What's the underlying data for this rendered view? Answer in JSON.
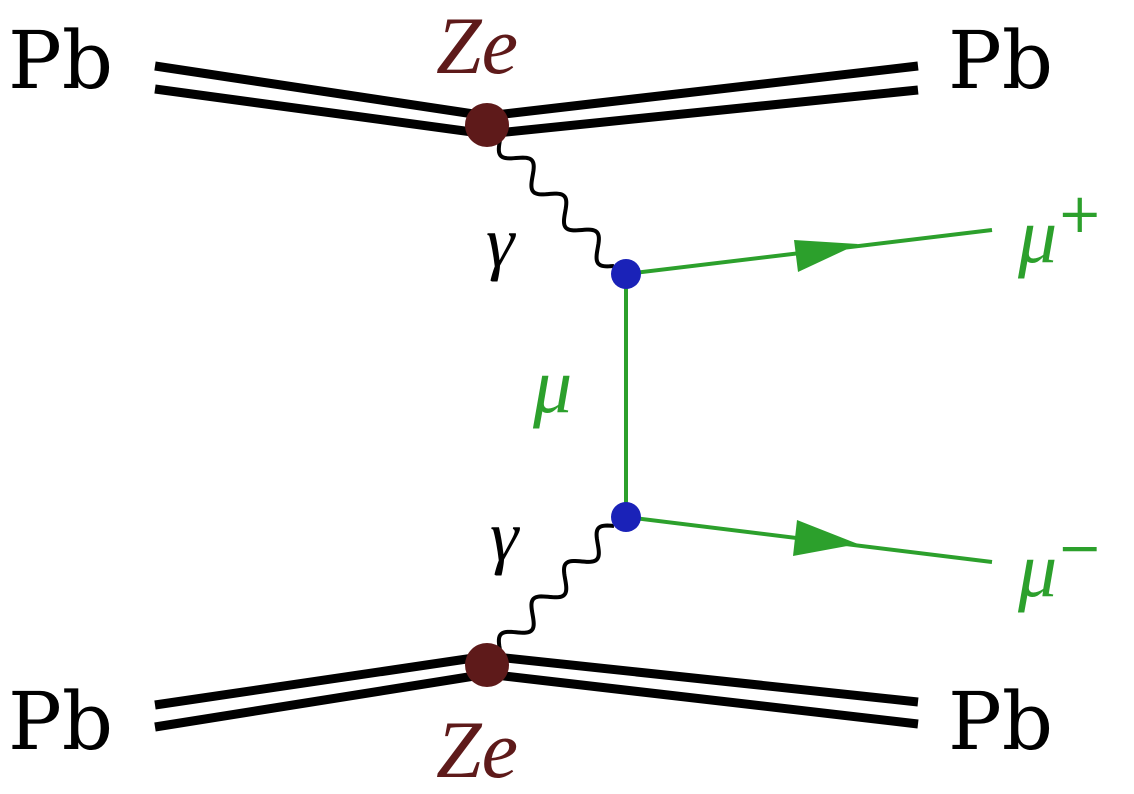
{
  "diagram": {
    "type": "feynman-diagram",
    "colors": {
      "nucleus": "#000000",
      "nucleus_vertex": "#5e1a1a",
      "photon": "#000000",
      "muon": "#2ca02c",
      "muon_vertex": "#1a22b8",
      "background": "#ffffff"
    },
    "labels": {
      "top_left": "Pb",
      "top_right": "Pb",
      "bottom_left": "Pb",
      "bottom_right": "Pb",
      "top_charge": "Ze",
      "bottom_charge": "Ze",
      "top_photon": "γ",
      "bottom_photon": "γ",
      "propagator": "μ",
      "muon_plus": "μ",
      "muon_plus_sign": "+",
      "muon_minus": "μ",
      "muon_minus_sign": "−"
    }
  }
}
